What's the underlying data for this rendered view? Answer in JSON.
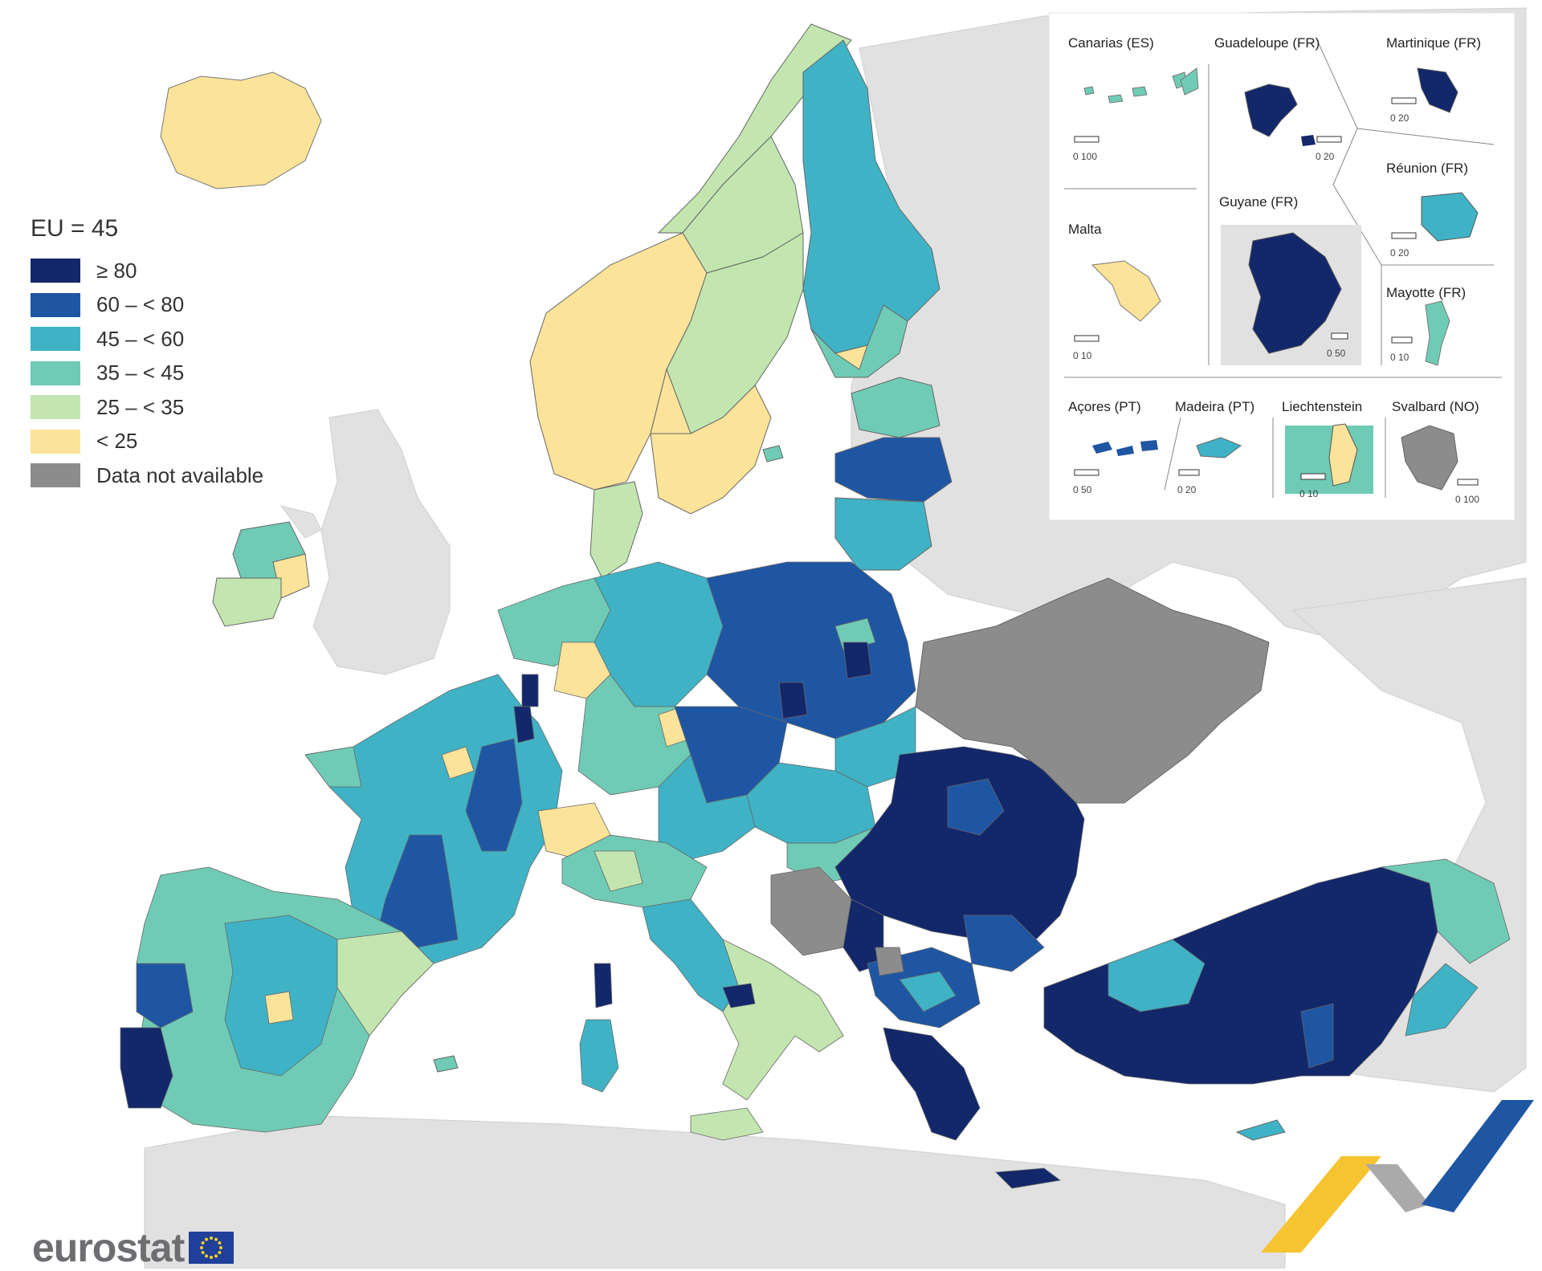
{
  "legend": {
    "title": "EU = 45",
    "classes": [
      {
        "label": "≥ 80",
        "color": "#13276b"
      },
      {
        "label": "60 – < 80",
        "color": "#1f56a3"
      },
      {
        "label": "45 – < 60",
        "color": "#3fb3c5"
      },
      {
        "label": "35 – < 45",
        "color": "#6fcbb5"
      },
      {
        "label": "25 – < 35",
        "color": "#c3e6b0"
      },
      {
        "label": "< 25",
        "color": "#fce39a"
      },
      {
        "label": "Data not available",
        "color": "#8c8c8c"
      }
    ]
  },
  "insets": {
    "canarias": {
      "name": "Canarias (ES)",
      "scale": "0   100"
    },
    "guadeloupe": {
      "name": "Guadeloupe (FR)",
      "scale": "0  20"
    },
    "martinique": {
      "name": "Martinique (FR)",
      "scale": "0  20"
    },
    "reunion": {
      "name": "Réunion (FR)",
      "scale": "0  20"
    },
    "guyane": {
      "name": "Guyane (FR)",
      "scale": "0 50"
    },
    "malta": {
      "name": "Malta",
      "scale": "0  10"
    },
    "mayotte": {
      "name": "Mayotte (FR)",
      "scale": "0  10"
    },
    "acores": {
      "name": "Açores (PT)",
      "scale": "0  50"
    },
    "madeira": {
      "name": "Madeira (PT)",
      "scale": "0  20"
    },
    "liechtenstein": {
      "name": "Liechtenstein",
      "scale": "0   10"
    },
    "svalbard": {
      "name": "Svalbard (NO)",
      "scale": "0 100"
    }
  },
  "footer": {
    "logo_text": "eurostat"
  },
  "colors": {
    "non_eu_land": "#e1e1e1",
    "sea": "#ffffff",
    "border": "#555555"
  }
}
